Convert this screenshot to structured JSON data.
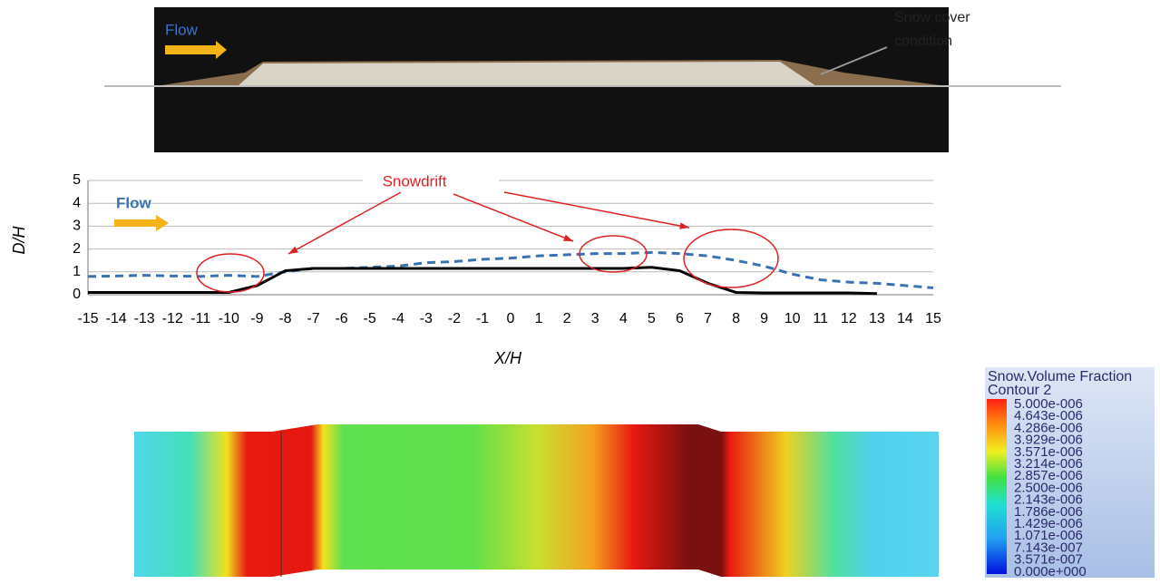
{
  "photo": {
    "flow": "Flow",
    "note": [
      "Snow cover",
      "condition"
    ]
  },
  "chart_data": {
    "type": "line",
    "xlabel": "X/H",
    "ylabel": "D/H",
    "annotations": [
      "Snowdrift",
      "Flow"
    ],
    "x": [
      -15,
      -14,
      -13,
      -12,
      -11,
      -10,
      -9,
      -8,
      -7,
      -6,
      -5,
      -4,
      -3,
      -2,
      -1,
      0,
      1,
      2,
      3,
      4,
      5,
      6,
      7,
      8,
      9,
      10,
      11,
      12,
      13,
      14,
      15
    ],
    "series": [
      {
        "color": "#3a72b0",
        "dash": true,
        "values": [
          0.8,
          0.82,
          0.85,
          0.82,
          0.8,
          0.85,
          0.8,
          1.0,
          1.15,
          1.15,
          1.2,
          1.25,
          1.4,
          1.45,
          1.55,
          1.6,
          1.7,
          1.75,
          1.8,
          1.8,
          1.85,
          1.8,
          1.7,
          1.5,
          1.25,
          0.9,
          0.65,
          0.55,
          0.5,
          0.4,
          0.3
        ]
      },
      {
        "color": "#000000",
        "dash": false,
        "values": [
          0.1,
          0.1,
          0.1,
          0.1,
          0.1,
          0.1,
          0.4,
          1.05,
          1.15,
          1.15,
          1.15,
          1.15,
          1.15,
          1.15,
          1.15,
          1.15,
          1.15,
          1.15,
          1.15,
          1.15,
          1.2,
          1.05,
          0.5,
          0.1,
          0.08,
          0.08,
          0.08,
          0.08,
          0.05,
          null,
          null
        ]
      }
    ],
    "xlim": [
      -15,
      15
    ],
    "xticks": [
      -15,
      -14,
      -13,
      -12,
      -11,
      -10,
      -9,
      -8,
      -7,
      -6,
      -5,
      -4,
      -3,
      -2,
      -1,
      0,
      1,
      2,
      3,
      4,
      5,
      6,
      7,
      8,
      9,
      10,
      11,
      12,
      13,
      14,
      15
    ],
    "ylim": [
      0,
      5
    ],
    "yticks": [
      0,
      1,
      2,
      3,
      4,
      5
    ],
    "grid": true
  },
  "contour": {
    "title": "Snow.Volume Fraction",
    "subtitle": "Contour 2",
    "levels": [
      "5.000e-006",
      "4.643e-006",
      "4.286e-006",
      "3.929e-006",
      "3.571e-006",
      "3.214e-006",
      "2.857e-006",
      "2.500e-006",
      "2.143e-006",
      "1.786e-006",
      "1.429e-006",
      "1.071e-006",
      "7.143e-007",
      "3.571e-007",
      "0.000e+000"
    ]
  }
}
